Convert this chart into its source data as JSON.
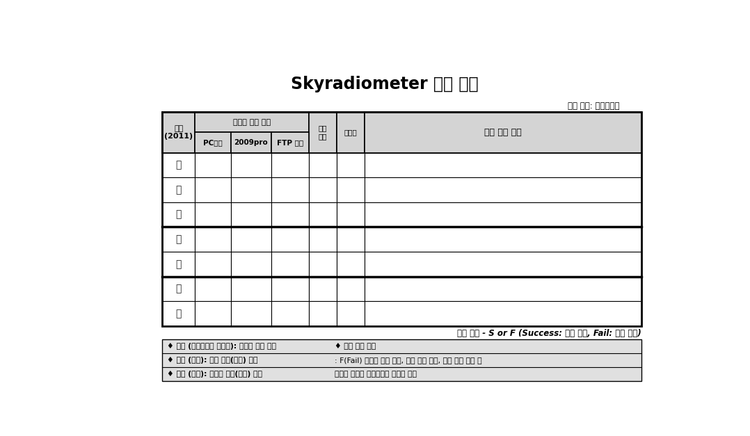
{
  "title": "Skyradiometer 관측 일지",
  "location_label": "관측 장소: 서울대학교",
  "day_labels": [
    "월",
    "화",
    "수",
    "목",
    "금",
    "토",
    "일"
  ],
  "header_date": "날짜",
  "header_date2": "(2011)",
  "header_comp": "컴퓨터 이상 여부",
  "header_pc": "PC운영",
  "header_2009": "2009pro",
  "header_ftp": "FTP 전송",
  "header_lens": "렌즈\n청소",
  "header_hum": "방습제",
  "header_note": "기타 특이 사항",
  "display_note": "표시 방법 - S or F (Success: 문제 없음, Fail: 이상 발견)",
  "footnotes_left": [
    "♦ 매일 (하루중에도 수시로): 컴퓨터 이상 여부",
    "♦ 매주 (주초): 렌즈 이상(청소) 여부",
    "♦ 매월 (월초): 방습제 이상(교체) 여부"
  ],
  "footnotes_right": [
    "♦ 기타 특이 사항",
    ": F(Fail) 표시시 상세 내용, 기기 일시 해체, 주변 공사 여부 등",
    "관측과 관계된 특이사항은 상세히 기술"
  ],
  "bg_color": "#ffffff",
  "header_bg": "#d4d4d4",
  "footnote_bg": "#e0e0e0",
  "thick_row_indices": [
    3,
    5
  ]
}
